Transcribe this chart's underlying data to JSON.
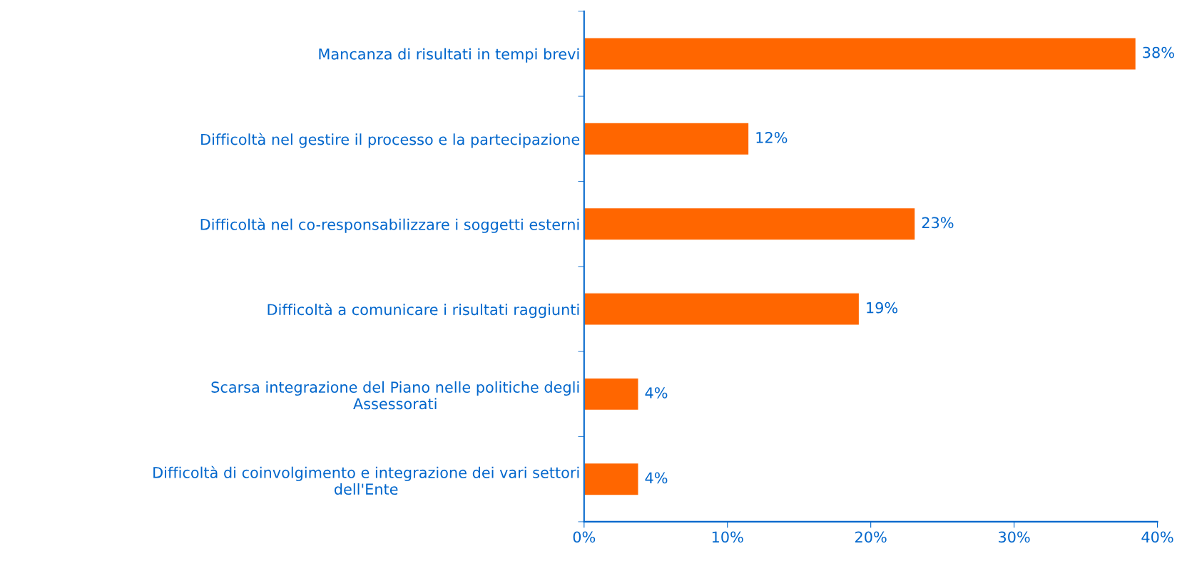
{
  "chart_data": {
    "type": "bar",
    "orientation": "horizontal",
    "categories": [
      "Mancanza di risultati in tempi brevi",
      "Difficoltà nel gestire il processo e la partecipazione",
      "Difficoltà nel co-responsabilizzare i soggetti esterni",
      "Difficoltà a comunicare i risultati raggiunti",
      "Scarsa integrazione del Piano nelle politiche degli\nAssessorati",
      "Difficoltà di coinvolgimento e integrazione dei vari settori\ndell'Ente"
    ],
    "values": [
      38.5,
      11.5,
      23.1,
      19.2,
      3.8,
      3.8
    ],
    "value_labels": [
      "38%",
      "12%",
      "23%",
      "19%",
      "4%",
      "4%"
    ],
    "color": "#ff6600",
    "xlim": [
      0,
      40
    ],
    "xticks": [
      {
        "value": 0,
        "label": "0%"
      },
      {
        "value": 10,
        "label": "10%"
      },
      {
        "value": 20,
        "label": "20%"
      },
      {
        "value": 30,
        "label": "30%"
      },
      {
        "value": 40,
        "label": "40%"
      }
    ],
    "grid": false,
    "legend": false
  }
}
